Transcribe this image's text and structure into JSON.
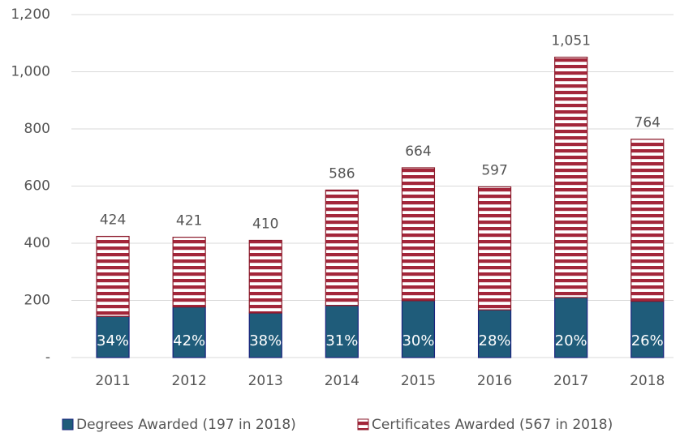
{
  "chart_data": {
    "type": "stacked_bar",
    "categories": [
      "2011",
      "2012",
      "2013",
      "2014",
      "2015",
      "2016",
      "2017",
      "2018"
    ],
    "series": [
      {
        "name": "Degrees Awarded (197 in 2018)",
        "color": "#1f5c7a",
        "values": [
          144,
          177,
          156,
          182,
          199,
          167,
          210,
          197
        ]
      },
      {
        "name": "Certificates Awarded (567 in 2018)",
        "color": "#a3263a",
        "values": [
          280,
          244,
          254,
          404,
          465,
          430,
          841,
          567
        ]
      }
    ],
    "totals": [
      424,
      421,
      410,
      586,
      664,
      597,
      {
        "value": 1051,
        "label": "1,051"
      },
      764
    ],
    "degree_share": {
      "values": [
        34,
        42,
        38,
        31,
        30,
        28,
        20,
        26
      ],
      "value_labels": [
        "34%",
        "42%",
        "38%",
        "31%",
        "30%",
        "28%",
        "20%",
        "26%"
      ]
    },
    "ylim": [
      0,
      1200
    ],
    "yticks": [
      {
        "value": 0,
        "label": "-"
      },
      200,
      400,
      600,
      800,
      {
        "value": 1000,
        "label": "1,000"
      },
      {
        "value": 1200,
        "label": "1,200"
      }
    ],
    "grid": true
  }
}
